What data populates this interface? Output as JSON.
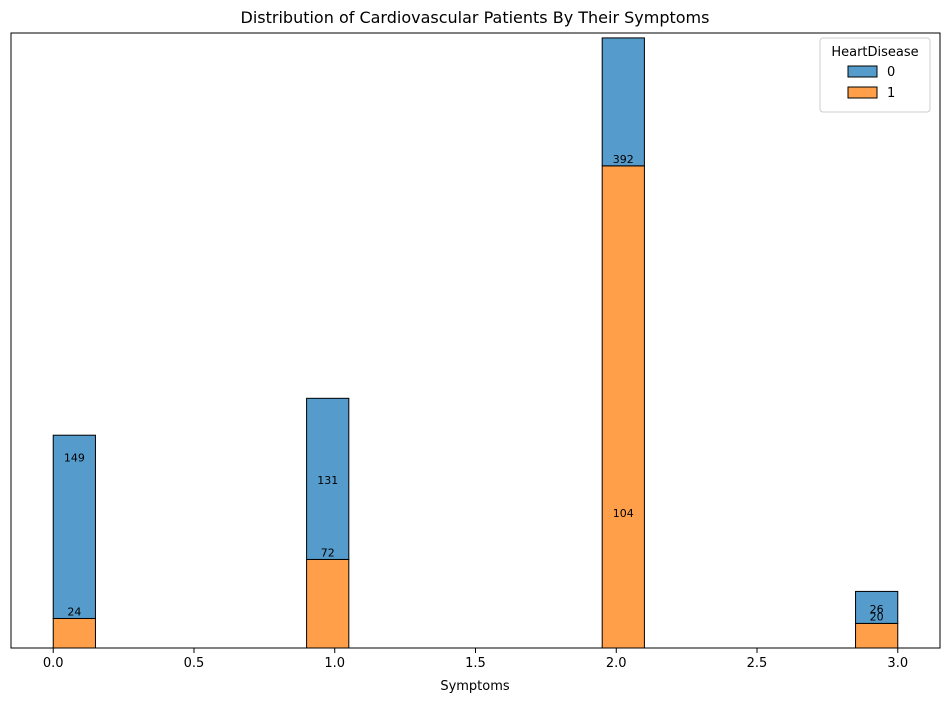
{
  "chart_data": {
    "type": "bar",
    "title": "Distribution of Cardiovascular Patients By Their Symptoms",
    "xlabel": "Symptoms",
    "ylabel": "",
    "xlim": [
      -0.15,
      3.15
    ],
    "ylim": [
      0,
      500
    ],
    "x_ticks": [
      "0.0",
      "0.5",
      "1.0",
      "1.5",
      "2.0",
      "2.5",
      "3.0"
    ],
    "x_tick_values": [
      0,
      0.5,
      1,
      1.5,
      2,
      2.5,
      3
    ],
    "grid": false,
    "stacked": true,
    "legend": {
      "title": "HeartDisease",
      "position": "top-right"
    },
    "bins": [
      {
        "x_start": 0.0,
        "x_end": 0.15
      },
      {
        "x_start": 0.9,
        "x_end": 1.05
      },
      {
        "x_start": 1.95,
        "x_end": 2.1
      },
      {
        "x_start": 2.85,
        "x_end": 3.0
      }
    ],
    "series": [
      {
        "name": "1",
        "color": "#ff9f4a",
        "values": [
          24,
          72,
          392,
          20
        ]
      },
      {
        "name": "0",
        "color": "#559bcc",
        "values": [
          149,
          131,
          104,
          26
        ]
      }
    ],
    "bar_labels": [
      {
        "text": "24",
        "bin": 0,
        "y": 24
      },
      {
        "text": "149",
        "bin": 0,
        "y": 149
      },
      {
        "text": "72",
        "bin": 1,
        "y": 72
      },
      {
        "text": "131",
        "bin": 1,
        "y": 131
      },
      {
        "text": "392",
        "bin": 2,
        "y": 392
      },
      {
        "text": "104",
        "bin": 2,
        "y": 104
      },
      {
        "text": "26",
        "bin": 3,
        "y": 26
      },
      {
        "text": "20",
        "bin": 3,
        "y": 20
      }
    ]
  }
}
